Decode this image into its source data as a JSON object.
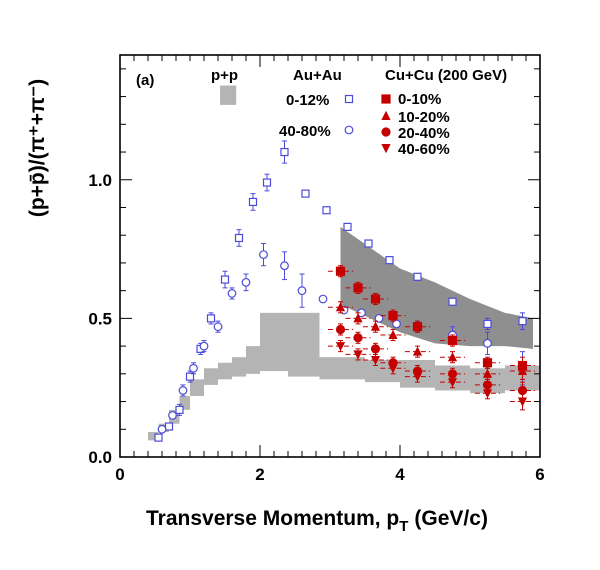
{
  "chart_data": {
    "type": "scatter",
    "panel_label": "(a)",
    "xlabel_main": "Transverse Momentum, p",
    "xlabel_sub": "T",
    "xlabel_units": "(GeV/c)",
    "ylabel": "(p+p̄)/(π⁺+π⁻)",
    "xlim": [
      0,
      6
    ],
    "ylim": [
      0,
      1.45
    ],
    "x_ticks": [
      0,
      2,
      4,
      6
    ],
    "x_tick_labels": [
      "0",
      "2",
      "4",
      "6"
    ],
    "y_ticks": [
      0.0,
      0.5,
      1.0
    ],
    "y_tick_labels": [
      "0.0",
      "0.5",
      "1.0"
    ],
    "legend": {
      "pp_header": "p+p",
      "auau_header": "Au+Au",
      "cucu_header": "Cu+Cu (200 GeV)",
      "auau_entries": [
        "0-12%",
        "40-80%"
      ],
      "cucu_entries": [
        "0-10%",
        "10-20%",
        "20-40%",
        "40-60%"
      ]
    },
    "colors": {
      "auau": "#4b4bd9",
      "cucu": "#c40000",
      "pp_band": "#b4b4b4",
      "auau_band": "#8f8f8f"
    },
    "series": [
      {
        "name": "0-12%",
        "system": "Au+Au",
        "marker": "open-square",
        "x": [
          0.55,
          0.7,
          0.85,
          1.0,
          1.15,
          1.3,
          1.5,
          1.7,
          1.9,
          2.1,
          2.35,
          2.65,
          2.95,
          3.25,
          3.55,
          3.85,
          4.25,
          4.75,
          5.25,
          5.75
        ],
        "y": [
          0.07,
          0.11,
          0.17,
          0.29,
          0.39,
          0.5,
          0.64,
          0.79,
          0.92,
          0.99,
          1.1,
          0.95,
          0.89,
          0.83,
          0.77,
          0.71,
          0.65,
          0.56,
          0.48,
          0.49
        ],
        "yerr": [
          0.01,
          0.01,
          0.02,
          0.02,
          0.02,
          0.02,
          0.03,
          0.03,
          0.03,
          0.03,
          0.04,
          0.01,
          0.01,
          0.01,
          0.01,
          0.01,
          0.01,
          0.01,
          0.02,
          0.03
        ]
      },
      {
        "name": "40-80%",
        "system": "Au+Au",
        "marker": "open-circle",
        "x": [
          0.6,
          0.75,
          0.9,
          1.05,
          1.2,
          1.4,
          1.6,
          1.8,
          2.05,
          2.35,
          2.6,
          2.9,
          3.2,
          3.45,
          3.7,
          3.95,
          4.25,
          4.75,
          5.25,
          5.75
        ],
        "y": [
          0.1,
          0.15,
          0.24,
          0.32,
          0.4,
          0.47,
          0.59,
          0.63,
          0.73,
          0.69,
          0.6,
          0.57,
          0.53,
          0.52,
          0.5,
          0.48,
          0.47,
          0.44,
          0.41,
          0.32
        ],
        "yerr": [
          0.01,
          0.01,
          0.02,
          0.02,
          0.02,
          0.02,
          0.02,
          0.03,
          0.04,
          0.05,
          0.06,
          0.01,
          0.01,
          0.01,
          0.01,
          0.01,
          0.02,
          0.03,
          0.04,
          0.06
        ]
      },
      {
        "name": "0-10%",
        "system": "Cu+Cu",
        "marker": "filled-square",
        "x": [
          3.15,
          3.4,
          3.65,
          3.9,
          4.25,
          4.75,
          5.25,
          5.75
        ],
        "y": [
          0.67,
          0.61,
          0.57,
          0.51,
          0.47,
          0.42,
          0.34,
          0.33
        ],
        "yerr": [
          0.02,
          0.02,
          0.02,
          0.02,
          0.02,
          0.02,
          0.02,
          0.03
        ]
      },
      {
        "name": "10-20%",
        "system": "Cu+Cu",
        "marker": "filled-triangle-up",
        "x": [
          3.15,
          3.4,
          3.65,
          3.9,
          4.25,
          4.75,
          5.25,
          5.75
        ],
        "y": [
          0.54,
          0.5,
          0.47,
          0.44,
          0.38,
          0.36,
          0.3,
          0.31
        ],
        "yerr": [
          0.02,
          0.02,
          0.02,
          0.02,
          0.02,
          0.02,
          0.02,
          0.03
        ]
      },
      {
        "name": "20-40%",
        "system": "Cu+Cu",
        "marker": "filled-circle",
        "x": [
          3.15,
          3.4,
          3.65,
          3.9,
          4.25,
          4.75,
          5.25,
          5.75
        ],
        "y": [
          0.46,
          0.43,
          0.39,
          0.34,
          0.31,
          0.3,
          0.26,
          0.24
        ],
        "yerr": [
          0.02,
          0.02,
          0.02,
          0.02,
          0.02,
          0.02,
          0.02,
          0.03
        ]
      },
      {
        "name": "40-60%",
        "system": "Cu+Cu",
        "marker": "filled-triangle-down",
        "x": [
          3.15,
          3.4,
          3.65,
          3.9,
          4.25,
          4.75,
          5.25,
          5.75
        ],
        "y": [
          0.4,
          0.37,
          0.35,
          0.32,
          0.29,
          0.27,
          0.23,
          0.2
        ],
        "yerr": [
          0.02,
          0.02,
          0.02,
          0.02,
          0.02,
          0.02,
          0.02,
          0.03
        ]
      }
    ],
    "pp_band": [
      {
        "x0": 0.4,
        "x1": 0.55,
        "y0": 0.06,
        "y1": 0.09
      },
      {
        "x0": 0.55,
        "x1": 0.7,
        "y0": 0.09,
        "y1": 0.12
      },
      {
        "x0": 0.7,
        "x1": 0.85,
        "y0": 0.12,
        "y1": 0.17
      },
      {
        "x0": 0.85,
        "x1": 1.0,
        "y0": 0.17,
        "y1": 0.22
      },
      {
        "x0": 1.0,
        "x1": 1.2,
        "y0": 0.22,
        "y1": 0.28
      },
      {
        "x0": 1.2,
        "x1": 1.4,
        "y0": 0.26,
        "y1": 0.32
      },
      {
        "x0": 1.4,
        "x1": 1.6,
        "y0": 0.28,
        "y1": 0.34
      },
      {
        "x0": 1.6,
        "x1": 1.8,
        "y0": 0.29,
        "y1": 0.36
      },
      {
        "x0": 1.8,
        "x1": 2.0,
        "y0": 0.3,
        "y1": 0.4
      },
      {
        "x0": 2.0,
        "x1": 2.4,
        "y0": 0.31,
        "y1": 0.52
      },
      {
        "x0": 2.4,
        "x1": 2.85,
        "y0": 0.29,
        "y1": 0.52
      },
      {
        "x0": 2.85,
        "x1": 3.5,
        "y0": 0.28,
        "y1": 0.36
      },
      {
        "x0": 3.5,
        "x1": 4.0,
        "y0": 0.27,
        "y1": 0.35
      },
      {
        "x0": 4.0,
        "x1": 4.5,
        "y0": 0.25,
        "y1": 0.35
      },
      {
        "x0": 4.5,
        "x1": 5.0,
        "y0": 0.24,
        "y1": 0.33
      },
      {
        "x0": 5.0,
        "x1": 5.5,
        "y0": 0.23,
        "y1": 0.32
      },
      {
        "x0": 5.5,
        "x1": 6.0,
        "y0": 0.24,
        "y1": 0.33
      }
    ],
    "pp_legend_box": {
      "x0": 1.43,
      "x1": 1.66,
      "y0": 1.27,
      "y1": 1.34
    },
    "auau_band": {
      "x": [
        3.15,
        4.0,
        4.5,
        5.0,
        5.5,
        5.9
      ],
      "upper": [
        0.83,
        0.68,
        0.63,
        0.57,
        0.52,
        0.5
      ],
      "lower": [
        0.55,
        0.45,
        0.41,
        0.4,
        0.4,
        0.39
      ]
    },
    "notes": {
      "cucu_systematic_dash_halfwidth": 0.18
    }
  }
}
